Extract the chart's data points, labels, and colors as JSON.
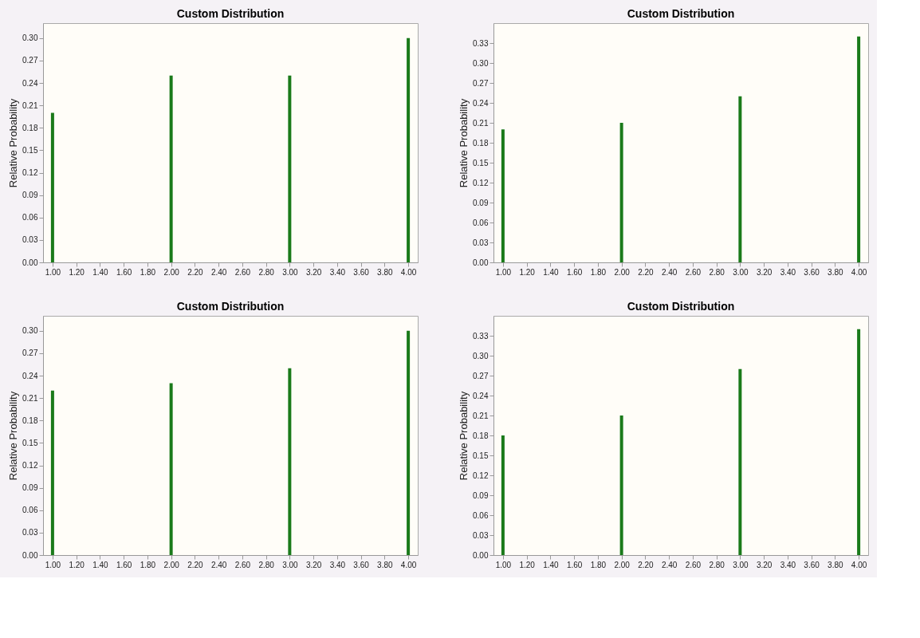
{
  "chart_data": [
    {
      "type": "bar",
      "title": "Custom Distribution",
      "ylabel": "Relative Probability",
      "x": [
        1,
        2,
        3,
        4
      ],
      "series": [
        {
          "color": "#1a7a1a",
          "values": [
            0.2,
            0.25,
            0.25,
            0.3
          ]
        }
      ],
      "xlim": [
        0.92,
        4.08
      ],
      "ylim": [
        0,
        0.32
      ],
      "xticks": [
        {
          "value": 1,
          "label": "1.00"
        },
        {
          "value": 1.2,
          "label": "1.20"
        },
        {
          "value": 1.4,
          "label": "1.40"
        },
        {
          "value": 1.6,
          "label": "1.60"
        },
        {
          "value": 1.8,
          "label": "1.80"
        },
        {
          "value": 2,
          "label": "2.00"
        },
        {
          "value": 2.2,
          "label": "2.20"
        },
        {
          "value": 2.4,
          "label": "2.40"
        },
        {
          "value": 2.6,
          "label": "2.60"
        },
        {
          "value": 2.8,
          "label": "2.80"
        },
        {
          "value": 3,
          "label": "3.00"
        },
        {
          "value": 3.2,
          "label": "3.20"
        },
        {
          "value": 3.4,
          "label": "3.40"
        },
        {
          "value": 3.6,
          "label": "3.60"
        },
        {
          "value": 3.8,
          "label": "3.80"
        },
        {
          "value": 4,
          "label": "4.00"
        }
      ],
      "yticks": [
        {
          "value": 0,
          "label": "0.00"
        },
        {
          "value": 0.03,
          "label": "0.03"
        },
        {
          "value": 0.06,
          "label": "0.06"
        },
        {
          "value": 0.09,
          "label": "0.09"
        },
        {
          "value": 0.12,
          "label": "0.12"
        },
        {
          "value": 0.15,
          "label": "0.15"
        },
        {
          "value": 0.18,
          "label": "0.18"
        },
        {
          "value": 0.21,
          "label": "0.21"
        },
        {
          "value": 0.24,
          "label": "0.24"
        },
        {
          "value": 0.27,
          "label": "0.27"
        },
        {
          "value": 0.3,
          "label": "0.30"
        }
      ]
    },
    {
      "type": "bar",
      "title": "Custom Distribution",
      "ylabel": "Relative Probability",
      "x": [
        1,
        2,
        3,
        4
      ],
      "series": [
        {
          "color": "#1a7a1a",
          "values": [
            0.2,
            0.21,
            0.25,
            0.34
          ]
        }
      ],
      "xlim": [
        0.92,
        4.08
      ],
      "ylim": [
        0,
        0.36
      ],
      "xticks": [
        {
          "value": 1,
          "label": "1.00"
        },
        {
          "value": 1.2,
          "label": "1.20"
        },
        {
          "value": 1.4,
          "label": "1.40"
        },
        {
          "value": 1.6,
          "label": "1.60"
        },
        {
          "value": 1.8,
          "label": "1.80"
        },
        {
          "value": 2,
          "label": "2.00"
        },
        {
          "value": 2.2,
          "label": "2.20"
        },
        {
          "value": 2.4,
          "label": "2.40"
        },
        {
          "value": 2.6,
          "label": "2.60"
        },
        {
          "value": 2.8,
          "label": "2.80"
        },
        {
          "value": 3,
          "label": "3.00"
        },
        {
          "value": 3.2,
          "label": "3.20"
        },
        {
          "value": 3.4,
          "label": "3.40"
        },
        {
          "value": 3.6,
          "label": "3.60"
        },
        {
          "value": 3.8,
          "label": "3.80"
        },
        {
          "value": 4,
          "label": "4.00"
        }
      ],
      "yticks": [
        {
          "value": 0,
          "label": "0.00"
        },
        {
          "value": 0.03,
          "label": "0.03"
        },
        {
          "value": 0.06,
          "label": "0.06"
        },
        {
          "value": 0.09,
          "label": "0.09"
        },
        {
          "value": 0.12,
          "label": "0.12"
        },
        {
          "value": 0.15,
          "label": "0.15"
        },
        {
          "value": 0.18,
          "label": "0.18"
        },
        {
          "value": 0.21,
          "label": "0.21"
        },
        {
          "value": 0.24,
          "label": "0.24"
        },
        {
          "value": 0.27,
          "label": "0.27"
        },
        {
          "value": 0.3,
          "label": "0.30"
        },
        {
          "value": 0.33,
          "label": "0.33"
        }
      ]
    },
    {
      "type": "bar",
      "title": "Custom Distribution",
      "ylabel": "Relative Probability",
      "x": [
        1,
        2,
        3,
        4
      ],
      "series": [
        {
          "color": "#1a7a1a",
          "values": [
            0.22,
            0.23,
            0.25,
            0.3
          ]
        }
      ],
      "xlim": [
        0.92,
        4.08
      ],
      "ylim": [
        0,
        0.32
      ],
      "xticks": [
        {
          "value": 1,
          "label": "1.00"
        },
        {
          "value": 1.2,
          "label": "1.20"
        },
        {
          "value": 1.4,
          "label": "1.40"
        },
        {
          "value": 1.6,
          "label": "1.60"
        },
        {
          "value": 1.8,
          "label": "1.80"
        },
        {
          "value": 2,
          "label": "2.00"
        },
        {
          "value": 2.2,
          "label": "2.20"
        },
        {
          "value": 2.4,
          "label": "2.40"
        },
        {
          "value": 2.6,
          "label": "2.60"
        },
        {
          "value": 2.8,
          "label": "2.80"
        },
        {
          "value": 3,
          "label": "3.00"
        },
        {
          "value": 3.2,
          "label": "3.20"
        },
        {
          "value": 3.4,
          "label": "3.40"
        },
        {
          "value": 3.6,
          "label": "3.60"
        },
        {
          "value": 3.8,
          "label": "3.80"
        },
        {
          "value": 4,
          "label": "4.00"
        }
      ],
      "yticks": [
        {
          "value": 0,
          "label": "0.00"
        },
        {
          "value": 0.03,
          "label": "0.03"
        },
        {
          "value": 0.06,
          "label": "0.06"
        },
        {
          "value": 0.09,
          "label": "0.09"
        },
        {
          "value": 0.12,
          "label": "0.12"
        },
        {
          "value": 0.15,
          "label": "0.15"
        },
        {
          "value": 0.18,
          "label": "0.18"
        },
        {
          "value": 0.21,
          "label": "0.21"
        },
        {
          "value": 0.24,
          "label": "0.24"
        },
        {
          "value": 0.27,
          "label": "0.27"
        },
        {
          "value": 0.3,
          "label": "0.30"
        }
      ]
    },
    {
      "type": "bar",
      "title": "Custom Distribution",
      "ylabel": "Relative Probability",
      "x": [
        1,
        2,
        3,
        4
      ],
      "series": [
        {
          "color": "#1a7a1a",
          "values": [
            0.18,
            0.21,
            0.28,
            0.34
          ]
        }
      ],
      "xlim": [
        0.92,
        4.08
      ],
      "ylim": [
        0,
        0.36
      ],
      "xticks": [
        {
          "value": 1,
          "label": "1.00"
        },
        {
          "value": 1.2,
          "label": "1.20"
        },
        {
          "value": 1.4,
          "label": "1.40"
        },
        {
          "value": 1.6,
          "label": "1.60"
        },
        {
          "value": 1.8,
          "label": "1.80"
        },
        {
          "value": 2,
          "label": "2.00"
        },
        {
          "value": 2.2,
          "label": "2.20"
        },
        {
          "value": 2.4,
          "label": "2.40"
        },
        {
          "value": 2.6,
          "label": "2.60"
        },
        {
          "value": 2.8,
          "label": "2.80"
        },
        {
          "value": 3,
          "label": "3.00"
        },
        {
          "value": 3.2,
          "label": "3.20"
        },
        {
          "value": 3.4,
          "label": "3.40"
        },
        {
          "value": 3.6,
          "label": "3.60"
        },
        {
          "value": 3.8,
          "label": "3.80"
        },
        {
          "value": 4,
          "label": "4.00"
        }
      ],
      "yticks": [
        {
          "value": 0,
          "label": "0.00"
        },
        {
          "value": 0.03,
          "label": "0.03"
        },
        {
          "value": 0.06,
          "label": "0.06"
        },
        {
          "value": 0.09,
          "label": "0.09"
        },
        {
          "value": 0.12,
          "label": "0.12"
        },
        {
          "value": 0.15,
          "label": "0.15"
        },
        {
          "value": 0.18,
          "label": "0.18"
        },
        {
          "value": 0.21,
          "label": "0.21"
        },
        {
          "value": 0.24,
          "label": "0.24"
        },
        {
          "value": 0.27,
          "label": "0.27"
        },
        {
          "value": 0.3,
          "label": "0.30"
        },
        {
          "value": 0.33,
          "label": "0.33"
        }
      ]
    }
  ]
}
